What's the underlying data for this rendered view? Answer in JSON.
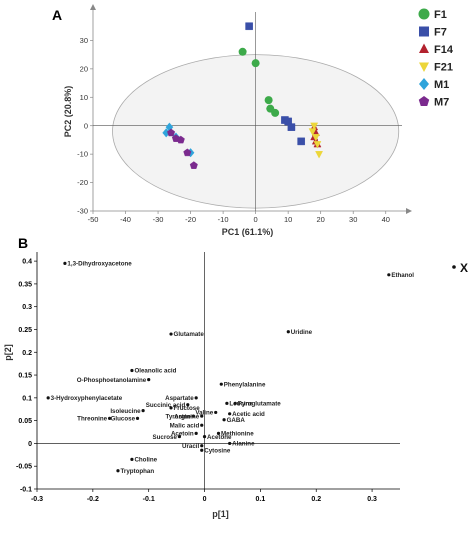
{
  "panel_a_letter": "A",
  "panel_b_letter": "B",
  "chart_data": [
    {
      "type": "scatter",
      "xlabel": "PC1 (61.1%)",
      "ylabel": "PC2 (20.8%)",
      "xlim": [
        -50,
        45
      ],
      "ylim": [
        -30,
        40
      ],
      "xticks": [
        -50,
        -40,
        -30,
        -20,
        -10,
        0,
        10,
        20,
        30,
        40
      ],
      "yticks": [
        -30,
        -20,
        -10,
        0,
        10,
        20,
        30
      ],
      "grid": false,
      "legend_position": "right",
      "ellipse": {
        "cx": 0,
        "cy": -2,
        "rx": 44,
        "ry": 27
      },
      "series": [
        {
          "name": "F1",
          "marker": "circle",
          "color": "#3daa4a",
          "points": [
            [
              -4,
              26
            ],
            [
              0,
              22
            ],
            [
              4,
              9
            ],
            [
              4.5,
              6
            ],
            [
              6,
              4.5
            ]
          ]
        },
        {
          "name": "F7",
          "marker": "square",
          "color": "#3a4fa8",
          "points": [
            [
              -2,
              35
            ],
            [
              9,
              2
            ],
            [
              10,
              1.5
            ],
            [
              11,
              -0.5
            ],
            [
              14,
              -5.5
            ]
          ]
        },
        {
          "name": "F14",
          "marker": "triangle-up",
          "color": "#b3222e",
          "points": [
            [
              18,
              -0.5
            ],
            [
              18.5,
              -2.5
            ],
            [
              18,
              -4
            ],
            [
              18.5,
              -5.5
            ],
            [
              19,
              -6.5
            ]
          ]
        },
        {
          "name": "F21",
          "marker": "triangle-down",
          "color": "#ecd63a",
          "points": [
            [
              18,
              0
            ],
            [
              17.5,
              -2
            ],
            [
              18.5,
              -4
            ],
            [
              19,
              -6.5
            ],
            [
              19.5,
              -10
            ]
          ]
        },
        {
          "name": "M1",
          "marker": "diamond",
          "color": "#2fa4db",
          "points": [
            [
              -26.5,
              -0.5
            ],
            [
              -27.5,
              -2.5
            ],
            [
              -24.5,
              -4
            ],
            [
              -20,
              -9.5
            ]
          ]
        },
        {
          "name": "M7",
          "marker": "pentagon",
          "color": "#7b2a8e",
          "points": [
            [
              -26,
              -2.5
            ],
            [
              -24.5,
              -4.5
            ],
            [
              -23,
              -5
            ],
            [
              -21,
              -9.5
            ],
            [
              -19,
              -14
            ]
          ]
        }
      ]
    },
    {
      "type": "scatter",
      "xlabel": "p[1]",
      "ylabel": "p[2]",
      "xlim": [
        -0.3,
        0.35
      ],
      "ylim": [
        -0.1,
        0.42
      ],
      "xticks": [
        -0.3,
        -0.2,
        -0.1,
        0,
        0.1,
        0.2,
        0.3
      ],
      "ytick_labels": [
        "-0.1",
        "-0.05",
        "0",
        "0.05",
        "0.1",
        "0.15",
        "0.2",
        "0.25",
        "0.3",
        "0.35",
        "0.4"
      ],
      "yticks": [
        -0.1,
        -0.05,
        0,
        0.05,
        0.1,
        0.15,
        0.2,
        0.25,
        0.3,
        0.35,
        0.4
      ],
      "grid": false,
      "legend_position": "top-right",
      "series": [
        {
          "name": "X",
          "color": "#111111",
          "points": [
            {
              "label": "1,3-Dihydroxyacetone",
              "x": -0.25,
              "y": 0.395,
              "side": "right"
            },
            {
              "label": "Ethanol",
              "x": 0.33,
              "y": 0.37,
              "side": "right"
            },
            {
              "label": "Uridine",
              "x": 0.15,
              "y": 0.245,
              "side": "right"
            },
            {
              "label": "Glutamate",
              "x": -0.06,
              "y": 0.24,
              "side": "right"
            },
            {
              "label": "Oleanolic acid",
              "x": -0.13,
              "y": 0.16,
              "side": "right"
            },
            {
              "label": "O-Phosphoetanolamine",
              "x": -0.1,
              "y": 0.14,
              "side": "left"
            },
            {
              "label": "Phenylalanine",
              "x": 0.03,
              "y": 0.13,
              "side": "right"
            },
            {
              "label": "3-Hydroxyphenylacetate",
              "x": -0.28,
              "y": 0.1,
              "side": "right"
            },
            {
              "label": "Aspartate",
              "x": -0.015,
              "y": 0.1,
              "side": "left"
            },
            {
              "label": "Leucine",
              "x": 0.04,
              "y": 0.088,
              "side": "right"
            },
            {
              "label": "Pyroglutamate",
              "x": 0.055,
              "y": 0.088,
              "side": "right"
            },
            {
              "label": "Succinic acid",
              "x": -0.03,
              "y": 0.085,
              "side": "left"
            },
            {
              "label": "Fructose",
              "x": -0.06,
              "y": 0.078,
              "side": "right"
            },
            {
              "label": "Isoleucine",
              "x": -0.11,
              "y": 0.072,
              "side": "left"
            },
            {
              "label": "Valine",
              "x": 0.02,
              "y": 0.068,
              "side": "left"
            },
            {
              "label": "Acetic acid",
              "x": 0.045,
              "y": 0.065,
              "side": "right"
            },
            {
              "label": "Tyrosine",
              "x": -0.02,
              "y": 0.06,
              "side": "left"
            },
            {
              "label": "Arginine",
              "x": -0.005,
              "y": 0.06,
              "side": "left"
            },
            {
              "label": "Threonine",
              "x": -0.17,
              "y": 0.055,
              "side": "left"
            },
            {
              "label": "Glucose",
              "x": -0.12,
              "y": 0.055,
              "side": "left"
            },
            {
              "label": "GABA",
              "x": 0.035,
              "y": 0.052,
              "side": "right"
            },
            {
              "label": "Malic acid",
              "x": -0.005,
              "y": 0.04,
              "side": "left"
            },
            {
              "label": "Acetoin",
              "x": -0.015,
              "y": 0.022,
              "side": "left"
            },
            {
              "label": "Methionine",
              "x": 0.025,
              "y": 0.022,
              "side": "right"
            },
            {
              "label": "Sucrose",
              "x": -0.045,
              "y": 0.015,
              "side": "left"
            },
            {
              "label": "Acetone",
              "x": 0.0,
              "y": 0.015,
              "side": "right"
            },
            {
              "label": "Alanine",
              "x": 0.045,
              "y": 0.0,
              "side": "right"
            },
            {
              "label": "Uracil",
              "x": -0.005,
              "y": -0.005,
              "side": "left"
            },
            {
              "label": "Cytosine",
              "x": -0.005,
              "y": -0.015,
              "side": "right"
            },
            {
              "label": "Choline",
              "x": -0.13,
              "y": -0.035,
              "side": "right"
            },
            {
              "label": "Tryptophan",
              "x": -0.155,
              "y": -0.06,
              "side": "right"
            }
          ]
        }
      ]
    }
  ]
}
